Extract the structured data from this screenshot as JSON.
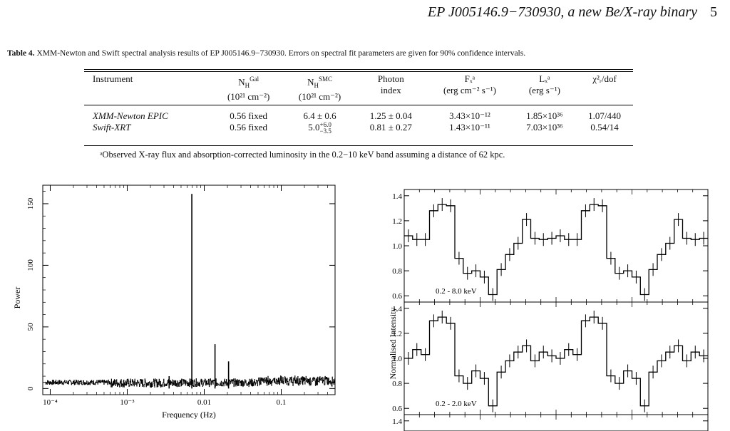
{
  "header": {
    "running_title": "EP J005146.9−730930, a new Be/X-ray binary",
    "page_number": "5"
  },
  "caption": {
    "label": "Table 4.",
    "text": "XMM-Newton and Swift spectral analysis results of EP J005146.9−730930. Errors on spectral fit parameters are given for 90% confidence intervals."
  },
  "table": {
    "headers": {
      "instrument": "Instrument",
      "nh_gal": "N",
      "nh_gal_sub": "H",
      "nh_gal_sup": "Gal",
      "nh_gal_unit": "(10²¹ cm⁻²)",
      "nh_smc": "N",
      "nh_smc_sub": "H",
      "nh_smc_sup": "SMC",
      "nh_smc_unit": "(10²¹ cm⁻²)",
      "photon": "Photon",
      "photon2": "index",
      "fx": "Fₓᵃ",
      "fx_unit": "(erg cm⁻² s⁻¹)",
      "lx": "Lₓᵃ",
      "lx_unit": "(erg s⁻¹)",
      "chi": "χ²ᵣ/dof"
    },
    "rows": [
      {
        "instrument": "XMM-Newton EPIC",
        "nh_gal": "0.56 fixed",
        "nh_smc": "6.4 ± 0.6",
        "photon": "1.25 ± 0.04",
        "fx": "3.43×10⁻¹²",
        "lx": "1.85×10³⁶",
        "chi": "1.07/440"
      },
      {
        "instrument": "Swift-XRT",
        "nh_gal": "0.56 fixed",
        "nh_smc_base": "5.0",
        "nh_smc_up": "+6.0",
        "nh_smc_low": "−3.5",
        "photon": "0.81 ± 0.27",
        "fx": "1.43×10⁻¹¹",
        "lx": "7.03×10³⁶",
        "chi": "0.54/14"
      }
    ],
    "footnote": "ᵃObserved X-ray flux and absorption-corrected luminosity in the 0.2−10 keV band assuming a distance of 62 kpc."
  },
  "chart_data": [
    {
      "type": "line",
      "xlabel": "Frequency (Hz)",
      "ylabel": "Power",
      "xscale": "log",
      "xlim": [
        8e-05,
        0.5
      ],
      "ylim": [
        -5,
        165
      ],
      "x_ticks": [
        "10⁻⁴",
        "10⁻³",
        "0.01",
        "0.1"
      ],
      "y_ticks": [
        "0",
        "50",
        "100",
        "150"
      ],
      "peaks": [
        {
          "x": 0.0069,
          "y": 158
        },
        {
          "x": 0.0138,
          "y": 36
        },
        {
          "x": 0.0207,
          "y": 22
        },
        {
          "x": 0.0035,
          "y": 10
        }
      ],
      "noise_level": 5
    },
    {
      "type": "line",
      "ylabel": "Normalised Intensity",
      "ylim": [
        0.55,
        1.45
      ],
      "y_ticks": [
        "0.6",
        "0.8",
        "1.0",
        "1.2",
        "1.4"
      ],
      "panels": [
        {
          "band": "0.2 - 8.0 keV",
          "values": [
            1.08,
            1.05,
            1.05,
            1.28,
            1.33,
            1.32,
            0.9,
            0.78,
            0.8,
            0.75,
            0.61,
            0.81,
            0.93,
            1.02,
            1.21,
            1.06,
            1.05,
            1.06
          ]
        },
        {
          "band": "0.2 - 2.0 keV",
          "values": [
            1.0,
            1.07,
            1.03,
            1.3,
            1.33,
            1.28,
            0.86,
            0.8,
            0.9,
            0.84,
            0.62,
            0.89,
            0.98,
            1.05,
            1.1,
            0.98,
            1.05,
            1.02
          ]
        },
        {
          "band": "",
          "values": []
        }
      ]
    }
  ]
}
